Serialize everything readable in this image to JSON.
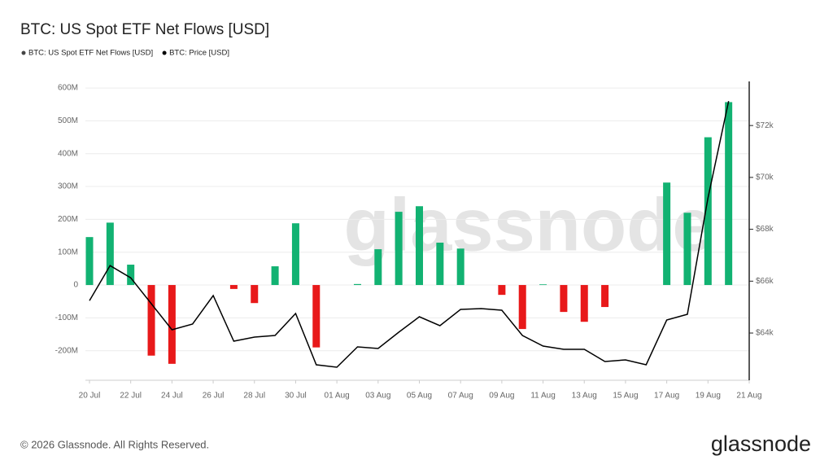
{
  "chart_data": {
    "type": "bar",
    "title": "BTC: US Spot ETF Net Flows [USD]",
    "categories": [
      "20 Jul",
      null,
      "22 Jul",
      null,
      "24 Jul",
      null,
      "26 Jul",
      null,
      "28 Jul",
      null,
      "30 Jul",
      null,
      "01 Aug",
      null,
      "03 Aug",
      null,
      "05 Aug",
      null,
      "07 Aug",
      null,
      "09 Aug",
      null,
      "11 Aug",
      null,
      "13 Aug",
      null,
      "15 Aug",
      null,
      "17 Aug",
      null,
      "19 Aug",
      null,
      "21 Aug"
    ],
    "series": [
      {
        "name": "BTC: US Spot ETF Net Flows [USD]",
        "type": "bar",
        "color": "#444444",
        "values": [
          146,
          190,
          62,
          -215,
          -240,
          null,
          null,
          -12,
          -55,
          57,
          188,
          -190,
          null,
          3,
          109,
          223,
          240,
          129,
          111,
          null,
          -30,
          -134,
          2,
          -82,
          -112,
          -67,
          null,
          null,
          312,
          220,
          450,
          557,
          null
        ]
      },
      {
        "name": "BTC: Price [USD]",
        "type": "line",
        "axis": "y2",
        "color": "#000000",
        "values": [
          65250,
          66600,
          66130,
          65130,
          64125,
          64345,
          65445,
          63686,
          63843,
          63906,
          64753,
          62776,
          62682,
          63467,
          63404,
          64031,
          64627,
          64282,
          64910,
          64941,
          64878,
          63906,
          63498,
          63373,
          63373,
          62902,
          62965,
          62776,
          64502,
          64722,
          69208,
          72941,
          null
        ]
      }
    ],
    "positive_color": "#12b272",
    "negative_color": "#e8191a",
    "ylim": [
      -290,
      620
    ],
    "yticks": [
      {
        "value": -200,
        "label": "-200M"
      },
      {
        "value": -100,
        "label": "-100M"
      },
      0,
      {
        "value": 100,
        "label": "100M"
      },
      {
        "value": 200,
        "label": "200M"
      },
      {
        "value": 300,
        "label": "300M"
      },
      {
        "value": 400,
        "label": "400M"
      },
      {
        "value": 500,
        "label": "500M"
      },
      {
        "value": 600,
        "label": "600M"
      }
    ],
    "y2lim": [
      62180,
      73700
    ],
    "y2ticks": [
      {
        "value": 64000,
        "label": "$64k"
      },
      {
        "value": 66000,
        "label": "$66k"
      },
      {
        "value": 68000,
        "label": "$68k"
      },
      {
        "value": 70000,
        "label": "$70k"
      },
      {
        "value": 72000,
        "label": "$72k"
      }
    ],
    "grid": true,
    "watermark": "glassnode"
  },
  "footer": {
    "copyright": "© 2026 Glassnode. All Rights Reserved.",
    "logo": "glassnode"
  }
}
